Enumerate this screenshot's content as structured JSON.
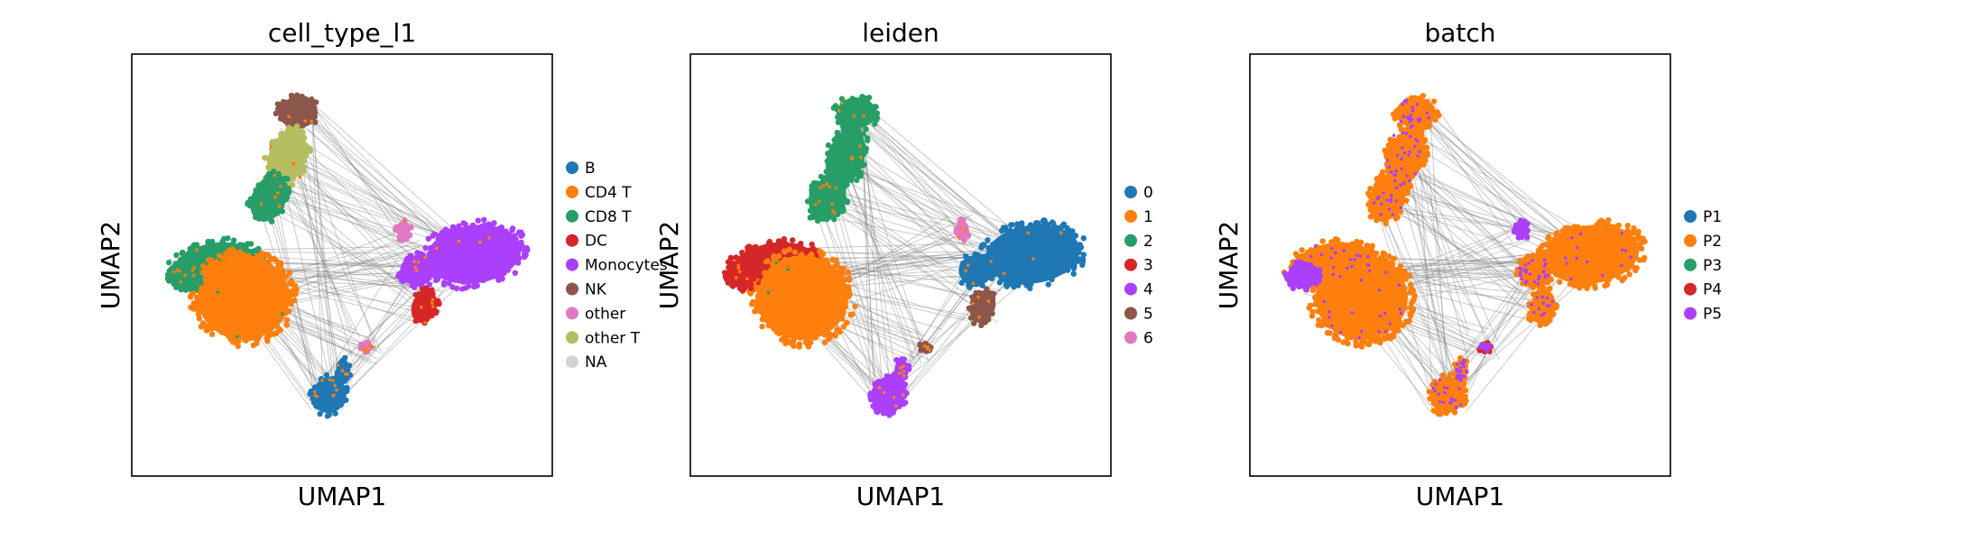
{
  "chart_data": [
    {
      "type": "scatter",
      "title": "cell_type_l1",
      "xlabel": "UMAP1",
      "ylabel": "UMAP2",
      "legend_position": "right",
      "grid": false,
      "series": [
        {
          "name": "B",
          "color": "#1f77b4"
        },
        {
          "name": "CD4 T",
          "color": "#ff7f0e"
        },
        {
          "name": "CD8 T",
          "color": "#279e68"
        },
        {
          "name": "DC",
          "color": "#d62728"
        },
        {
          "name": "Monocytes",
          "color": "#aa40fc"
        },
        {
          "name": "NK",
          "color": "#8c564b"
        },
        {
          "name": "other",
          "color": "#e377c2"
        },
        {
          "name": "other T",
          "color": "#b5bd61"
        },
        {
          "name": "NA",
          "color": "#d3d3d3"
        }
      ]
    },
    {
      "type": "scatter",
      "title": "leiden",
      "xlabel": "UMAP1",
      "ylabel": "UMAP2",
      "legend_position": "right",
      "grid": false,
      "series": [
        {
          "name": "0",
          "color": "#1f77b4"
        },
        {
          "name": "1",
          "color": "#ff7f0e"
        },
        {
          "name": "2",
          "color": "#279e68"
        },
        {
          "name": "3",
          "color": "#d62728"
        },
        {
          "name": "4",
          "color": "#aa40fc"
        },
        {
          "name": "5",
          "color": "#8c564b"
        },
        {
          "name": "6",
          "color": "#e377c2"
        }
      ]
    },
    {
      "type": "scatter",
      "title": "batch",
      "xlabel": "UMAP1",
      "ylabel": "UMAP2",
      "legend_position": "right",
      "grid": false,
      "series": [
        {
          "name": "P1",
          "color": "#1f77b4"
        },
        {
          "name": "P2",
          "color": "#ff7f0e"
        },
        {
          "name": "P3",
          "color": "#279e68"
        },
        {
          "name": "P4",
          "color": "#d62728"
        },
        {
          "name": "P5",
          "color": "#aa40fc"
        }
      ]
    }
  ]
}
